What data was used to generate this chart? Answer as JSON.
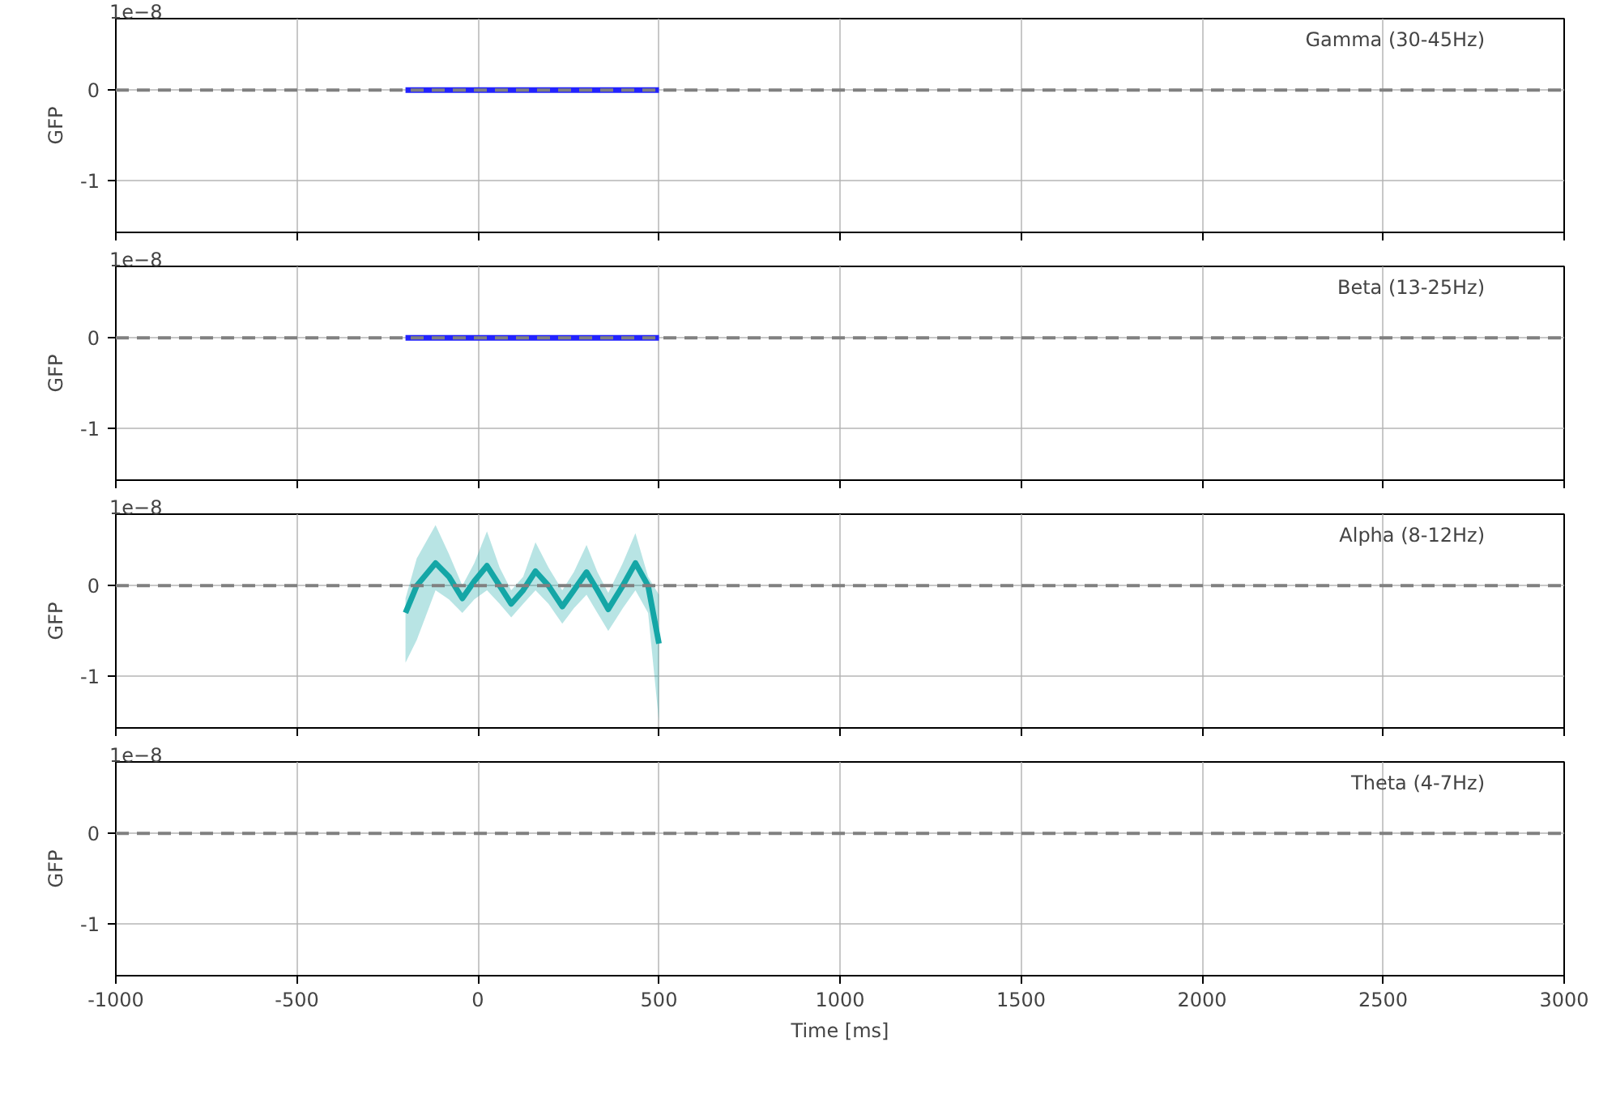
{
  "chart_data": [
    {
      "type": "line",
      "ylabel": "GFP",
      "annotations": [
        "1e−8",
        "Gamma (30-45Hz)"
      ],
      "xlim": [
        -1000,
        3000
      ],
      "xticks": [
        -1000,
        -500,
        0,
        500,
        1000,
        1500,
        2000,
        2500,
        3000
      ],
      "ylim": [
        -1.57,
        0.79
      ],
      "yticks": [
        -1,
        0
      ],
      "tick_labels": "y",
      "grid": true,
      "ref_lines": [
        {
          "axis": "y",
          "value": 0,
          "color": "#808080",
          "line_style": "dashed"
        }
      ],
      "series": [
        {
          "color": "#2222ff",
          "x": [
            -200,
            500
          ],
          "values": [
            0,
            0
          ]
        }
      ]
    },
    {
      "type": "line",
      "ylabel": "GFP",
      "annotations": [
        "1e−8",
        "Beta (13-25Hz)"
      ],
      "xlim": [
        -1000,
        3000
      ],
      "xticks": [
        -1000,
        -500,
        0,
        500,
        1000,
        1500,
        2000,
        2500,
        3000
      ],
      "ylim": [
        -1.57,
        0.79
      ],
      "yticks": [
        -1,
        0
      ],
      "tick_labels": "y",
      "grid": true,
      "ref_lines": [
        {
          "axis": "y",
          "value": 0,
          "color": "#808080",
          "line_style": "dashed"
        }
      ],
      "series": [
        {
          "color": "#2222ff",
          "x": [
            -200,
            500
          ],
          "values": [
            0,
            0
          ]
        }
      ]
    },
    {
      "type": "line",
      "ylabel": "GFP",
      "annotations": [
        "1e−8",
        "Alpha (8-12Hz)"
      ],
      "xlim": [
        -1000,
        3000
      ],
      "xticks": [
        -1000,
        -500,
        0,
        500,
        1000,
        1500,
        2000,
        2500,
        3000
      ],
      "ylim": [
        -1.57,
        0.79
      ],
      "yticks": [
        -1,
        0
      ],
      "tick_labels": "y",
      "grid": true,
      "ref_lines": [
        {
          "axis": "y",
          "value": 0,
          "color": "#808080",
          "line_style": "dashed"
        }
      ],
      "series": [
        {
          "color": "#14a6a6",
          "x": [
            -200,
            -169,
            -117,
            -80,
            -43,
            -10,
            25,
            60,
            92,
            125,
            159,
            195,
            233,
            265,
            300,
            330,
            360,
            400,
            435,
            470,
            500
          ],
          "values": [
            -0.3,
            0.0,
            0.25,
            0.1,
            -0.14,
            0.05,
            0.22,
            0.0,
            -0.2,
            -0.05,
            0.16,
            0.0,
            -0.23,
            -0.05,
            0.15,
            -0.05,
            -0.26,
            0.0,
            0.25,
            0.0,
            -0.64
          ],
          "lower": [
            -0.85,
            -0.6,
            -0.05,
            -0.15,
            -0.3,
            -0.15,
            -0.05,
            -0.2,
            -0.35,
            -0.2,
            -0.05,
            -0.2,
            -0.42,
            -0.25,
            -0.1,
            -0.3,
            -0.5,
            -0.25,
            -0.05,
            -0.3,
            -1.5
          ],
          "upper": [
            -0.14,
            0.3,
            0.67,
            0.35,
            0.0,
            0.25,
            0.6,
            0.2,
            -0.05,
            0.1,
            0.48,
            0.2,
            -0.05,
            0.15,
            0.45,
            0.15,
            -0.08,
            0.25,
            0.58,
            0.1,
            -0.1
          ]
        }
      ]
    },
    {
      "type": "line",
      "xlabel": "Time [ms]",
      "ylabel": "GFP",
      "annotations": [
        "1e−8",
        "Theta (4-7Hz)"
      ],
      "xlim": [
        -1000,
        3000
      ],
      "xticks": [
        -1000,
        -500,
        0,
        500,
        1000,
        1500,
        2000,
        2500,
        3000
      ],
      "ylim": [
        -1.57,
        0.79
      ],
      "yticks": [
        -1,
        0
      ],
      "grid": true,
      "ref_lines": [
        {
          "axis": "y",
          "value": 0,
          "color": "#808080",
          "line_style": "dashed"
        }
      ]
    }
  ]
}
